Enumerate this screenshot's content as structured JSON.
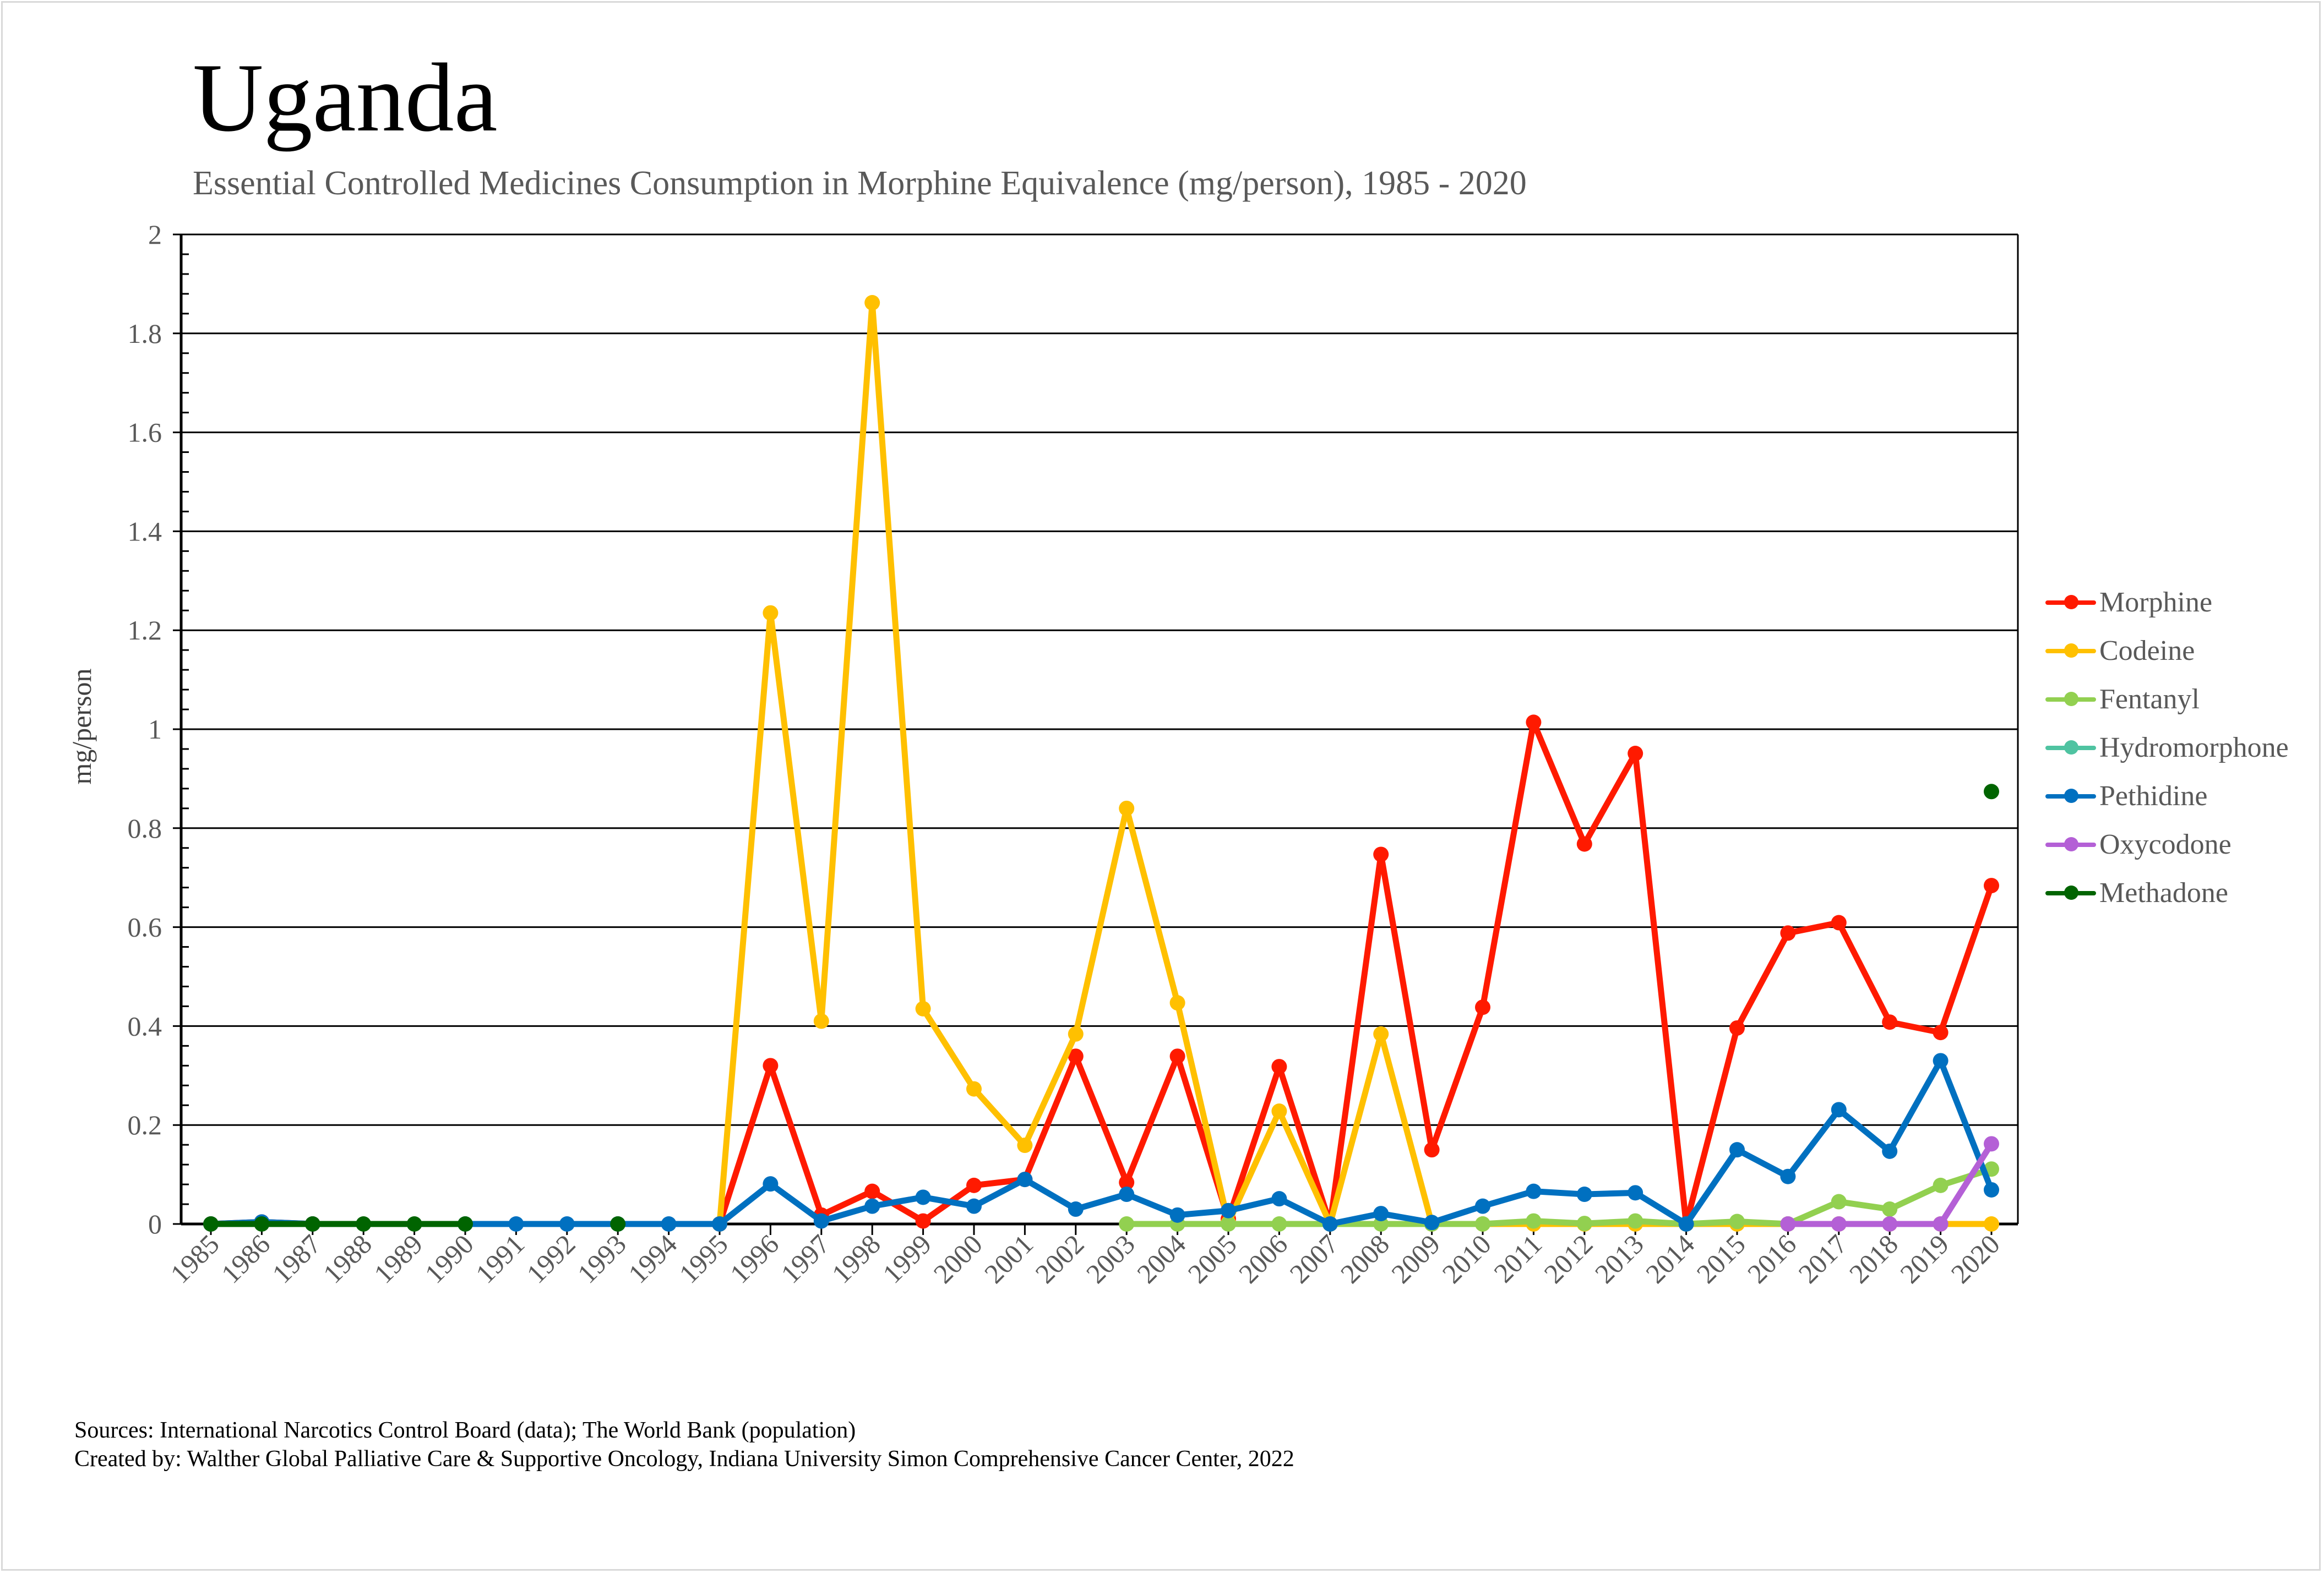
{
  "header": {
    "title": "Uganda",
    "subtitle": "Essential Controlled Medicines Consumption in Morphine Equivalence (mg/person), 1985 - 2020"
  },
  "footer": {
    "sources": "Sources: International Narcotics Control Board (data); The World Bank (population)",
    "created_by": "Created by: Walther Global Palliative Care & Supportive Oncology, Indiana University Simon Comprehensive Cancer Center, 2022"
  },
  "chart_data": {
    "type": "line",
    "title": "Uganda",
    "subtitle": "Essential Controlled Medicines Consumption in Morphine Equivalence (mg/person), 1985 - 2020",
    "xlabel": "",
    "ylabel": "mg/person",
    "ylim": [
      0,
      2
    ],
    "y_ticks": [
      "0",
      "0.2",
      "0.4",
      "0.6",
      "0.8",
      "1",
      "1.2",
      "1.4",
      "1.6",
      "1.8",
      "2"
    ],
    "grid": "horizontal major",
    "legend_position": "right",
    "x": [
      "1985",
      "1986",
      "1987",
      "1988",
      "1989",
      "1990",
      "1991",
      "1992",
      "1993",
      "1994",
      "1995",
      "1996",
      "1997",
      "1998",
      "1999",
      "2000",
      "2001",
      "2002",
      "2003",
      "2004",
      "2005",
      "2006",
      "2007",
      "2008",
      "2009",
      "2010",
      "2011",
      "2012",
      "2013",
      "2014",
      "2015",
      "2016",
      "2017",
      "2018",
      "2019",
      "2020"
    ],
    "series": [
      {
        "name": "Morphine",
        "color": "#ff1a00",
        "values": [
          0,
          0.004,
          0,
          null,
          null,
          null,
          null,
          null,
          null,
          null,
          0,
          0.32,
          0.018,
          0.066,
          0.006,
          0.078,
          0.09,
          0.339,
          0.084,
          0.339,
          0.01,
          0.318,
          0,
          0.747,
          0.15,
          0.438,
          1.014,
          0.768,
          0.951,
          0,
          0.396,
          0.588,
          0.609,
          0.408,
          0.387,
          0.684
        ]
      },
      {
        "name": "Codeine",
        "color": "#ffc000",
        "values": [
          null,
          null,
          null,
          null,
          null,
          null,
          null,
          null,
          null,
          null,
          0,
          1.235,
          0.41,
          1.862,
          0.435,
          0.273,
          0.159,
          0.384,
          0.84,
          0.447,
          0.002,
          0.228,
          0,
          0.384,
          0,
          0,
          0,
          0,
          0,
          0,
          0,
          0,
          0,
          0,
          0,
          0
        ]
      },
      {
        "name": "Fentanyl",
        "color": "#92d050",
        "values": [
          null,
          null,
          null,
          null,
          null,
          null,
          null,
          null,
          null,
          null,
          null,
          null,
          null,
          null,
          null,
          null,
          null,
          null,
          0,
          0,
          0,
          0,
          0,
          0,
          0,
          0,
          0.006,
          0.001,
          0.006,
          0,
          0.005,
          0,
          0.045,
          0.03,
          0.078,
          0.111
        ]
      },
      {
        "name": "Hydromorphone",
        "color": "#4fc3a1",
        "values": [
          null,
          null,
          null,
          null,
          null,
          null,
          null,
          null,
          null,
          null,
          null,
          null,
          null,
          null,
          null,
          null,
          null,
          null,
          null,
          null,
          null,
          null,
          null,
          null,
          null,
          null,
          null,
          null,
          null,
          null,
          null,
          null,
          null,
          null,
          null,
          null
        ]
      },
      {
        "name": "Pethidine",
        "color": "#0070c0",
        "values": [
          0,
          0.004,
          0,
          null,
          null,
          0,
          0,
          0,
          0,
          0,
          0,
          0.081,
          0.006,
          0.036,
          0.054,
          0.036,
          0.09,
          0.03,
          0.06,
          0.018,
          0.027,
          0.051,
          0,
          0.021,
          0.003,
          0.036,
          0.066,
          0.06,
          0.063,
          0,
          0.15,
          0.096,
          0.231,
          0.147,
          0.33,
          0.069
        ]
      },
      {
        "name": "Oxycodone",
        "color": "#b460d6",
        "values": [
          null,
          null,
          null,
          null,
          null,
          null,
          null,
          null,
          null,
          null,
          null,
          null,
          null,
          null,
          null,
          null,
          null,
          null,
          null,
          null,
          null,
          null,
          null,
          null,
          null,
          null,
          null,
          null,
          null,
          null,
          null,
          0,
          0,
          0,
          0,
          0.162
        ]
      },
      {
        "name": "Methadone",
        "color": "#006400",
        "values": [
          0,
          0,
          0,
          0,
          0,
          0,
          null,
          null,
          0,
          null,
          null,
          null,
          null,
          null,
          null,
          null,
          null,
          null,
          null,
          null,
          null,
          null,
          null,
          null,
          null,
          null,
          null,
          null,
          null,
          null,
          null,
          null,
          null,
          null,
          null,
          0.874
        ]
      }
    ]
  }
}
